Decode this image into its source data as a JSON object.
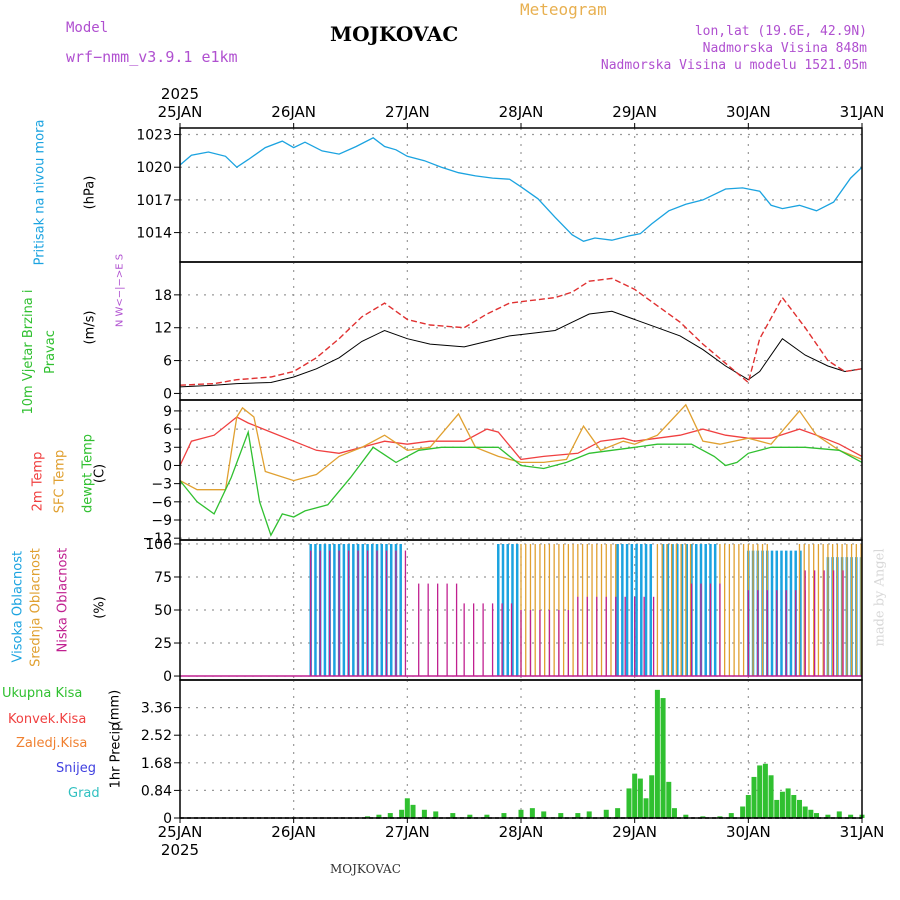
{
  "header": {
    "model_label": "Model",
    "model_name": "wrf−nmm_v3.9.1 e1km",
    "station": "MOJKOVAC",
    "meteogram": "Meteogram",
    "lonlat": "lon,lat (19.6E, 42.9N)",
    "altitude": "Nadmorska Visina 848m",
    "model_altitude": "Nadmorska Visina u modelu 1521.05m"
  },
  "footer": {
    "station": "MOJKOVAC",
    "credit": "made by Angel"
  },
  "colors": {
    "pressure": "#1ba3e0",
    "t2m": "#f04040",
    "sfc": "#e0a030",
    "dew": "#30c030",
    "high_cloud": "#1ba3e0",
    "mid_cloud": "#e0a030",
    "low_cloud": "#c02090",
    "precip": "#30c030",
    "header_purple": "#b050d0",
    "header_orange": "#e8b050"
  },
  "chart_data": {
    "type": "meteogram",
    "time_axis": {
      "year_label": "2025",
      "labels": [
        "25JAN",
        "26JAN",
        "27JAN",
        "28JAN",
        "29JAN",
        "30JAN",
        "31JAN"
      ],
      "start": "2025-01-25T00",
      "end": "2025-01-31T00"
    },
    "panels": [
      {
        "type": "line",
        "name": "pressure",
        "ylabel": "Pritisak na nivou mora",
        "unit": "(hPa)",
        "yticks": [
          1014,
          1017,
          1020,
          1023
        ],
        "ylim": [
          1011.3,
          1023.6
        ],
        "series": [
          {
            "x_day": [
              0,
              0.1,
              0.25,
              0.4,
              0.5,
              0.6,
              0.75,
              0.9,
              1.0,
              1.1,
              1.25,
              1.4,
              1.55,
              1.7,
              1.8,
              1.9,
              2.0,
              2.15,
              2.3,
              2.45,
              2.6,
              2.75,
              2.9,
              3.0,
              3.15,
              3.3,
              3.45,
              3.55,
              3.65,
              3.8,
              3.95,
              4.05,
              4.15,
              4.3,
              4.45,
              4.6,
              4.8,
              4.95,
              5.1,
              5.2,
              5.3,
              5.45,
              5.6,
              5.75,
              5.9,
              6.0
            ],
            "values": [
              1020.2,
              1021.1,
              1021.4,
              1021.0,
              1020.0,
              1020.7,
              1021.8,
              1022.4,
              1021.8,
              1022.3,
              1021.5,
              1021.2,
              1021.9,
              1022.7,
              1021.9,
              1021.6,
              1021.0,
              1020.6,
              1020.0,
              1019.5,
              1019.2,
              1019.0,
              1018.9,
              1018.2,
              1017.1,
              1015.4,
              1013.8,
              1013.2,
              1013.5,
              1013.3,
              1013.7,
              1013.9,
              1014.8,
              1016.0,
              1016.6,
              1017.0,
              1018.0,
              1018.1,
              1017.8,
              1016.5,
              1016.2,
              1016.5,
              1016.0,
              1016.8,
              1019.0,
              1020.0
            ]
          }
        ]
      },
      {
        "type": "line",
        "name": "wind",
        "ylabel": "10m Vjetar Brzina i Pravac",
        "unit": "(m/s)",
        "compass": "N W<−|−>E S",
        "yticks": [
          0,
          6,
          12,
          18
        ],
        "ylim": [
          -1.2,
          24
        ],
        "series": [
          {
            "name": "wind_speed",
            "x_day": [
              0,
              0.3,
              0.5,
              0.8,
              1.0,
              1.2,
              1.4,
              1.6,
              1.8,
              2.0,
              2.2,
              2.5,
              2.7,
              2.9,
              3.1,
              3.3,
              3.45,
              3.6,
              3.8,
              4.0,
              4.2,
              4.4,
              4.6,
              4.8,
              5.0,
              5.1,
              5.3,
              5.5,
              5.7,
              5.85,
              6.0
            ],
            "values": [
              1.2,
              1.5,
              1.8,
              2.0,
              3.0,
              4.5,
              6.5,
              9.5,
              11.5,
              10.0,
              9.0,
              8.5,
              9.5,
              10.5,
              11.0,
              11.5,
              13.0,
              14.5,
              15.0,
              13.5,
              12.0,
              10.5,
              8.0,
              5.0,
              2.5,
              4.0,
              10.0,
              7.0,
              5.0,
              4.0,
              4.5
            ]
          },
          {
            "name": "wind_gust",
            "x_day": [
              0,
              0.3,
              0.5,
              0.8,
              1.0,
              1.2,
              1.4,
              1.6,
              1.8,
              2.0,
              2.2,
              2.5,
              2.7,
              2.9,
              3.1,
              3.3,
              3.45,
              3.6,
              3.8,
              4.0,
              4.2,
              4.4,
              4.6,
              4.8,
              5.0,
              5.1,
              5.3,
              5.5,
              5.7,
              5.85,
              6.0
            ],
            "values": [
              1.5,
              1.8,
              2.5,
              3.0,
              4.0,
              6.5,
              10.0,
              14.0,
              16.5,
              13.5,
              12.5,
              12.0,
              14.5,
              16.5,
              17.0,
              17.5,
              18.5,
              20.5,
              21.0,
              19.0,
              16.0,
              13.0,
              9.0,
              5.5,
              2.0,
              10.0,
              17.5,
              12.0,
              6.0,
              4.0,
              4.5
            ]
          }
        ]
      },
      {
        "type": "line",
        "name": "temperature",
        "ylabel": "2m Temp / SFC Temp / dewpt Temp",
        "series_labels": [
          "2m Temp",
          "SFC Temp",
          "dewpt Temp"
        ],
        "unit": "(C)",
        "yticks": [
          -12,
          -9,
          -6,
          -3,
          0,
          3,
          6,
          9
        ],
        "ylim": [
          -12.3,
          10.8
        ],
        "series": [
          {
            "name": "2m Temp",
            "x_day": [
              0,
              0.1,
              0.3,
              0.5,
              0.6,
              0.8,
              1.0,
              1.2,
              1.4,
              1.6,
              1.8,
              2.0,
              2.2,
              2.5,
              2.7,
              2.8,
              3.0,
              3.2,
              3.5,
              3.7,
              3.9,
              4.0,
              4.2,
              4.4,
              4.6,
              4.8,
              5.0,
              5.2,
              5.45,
              5.6,
              5.8,
              6.0
            ],
            "values": [
              0,
              4.0,
              5.0,
              8.0,
              7.0,
              5.5,
              4.0,
              2.5,
              2.0,
              3.0,
              4.0,
              3.5,
              4.0,
              4.0,
              6.0,
              5.5,
              1.0,
              1.5,
              2.0,
              4.0,
              4.5,
              4.0,
              4.5,
              5.0,
              6.0,
              5.0,
              4.5,
              4.5,
              6.0,
              5.0,
              3.5,
              1.5
            ]
          },
          {
            "name": "SFC Temp",
            "x_day": [
              0,
              0.15,
              0.4,
              0.5,
              0.55,
              0.65,
              0.75,
              1.0,
              1.2,
              1.4,
              1.6,
              1.8,
              2.0,
              2.2,
              2.45,
              2.6,
              2.8,
              3.0,
              3.2,
              3.4,
              3.55,
              3.7,
              3.9,
              4.0,
              4.2,
              4.45,
              4.6,
              4.75,
              5.0,
              5.2,
              5.45,
              5.6,
              5.8,
              6.0
            ],
            "values": [
              -2.5,
              -4.0,
              -4.0,
              8.0,
              9.5,
              8.0,
              -1.0,
              -2.5,
              -1.5,
              1.5,
              3.0,
              5.0,
              2.5,
              3.0,
              8.5,
              3.0,
              1.5,
              0.5,
              0.5,
              1.0,
              6.5,
              2.5,
              4.0,
              3.5,
              5.0,
              10.0,
              4.0,
              3.5,
              4.5,
              3.5,
              9.0,
              5.0,
              2.5,
              1.0
            ]
          },
          {
            "name": "dewpt Temp",
            "x_day": [
              0,
              0.15,
              0.3,
              0.45,
              0.6,
              0.7,
              0.8,
              0.9,
              1.0,
              1.1,
              1.3,
              1.5,
              1.7,
              1.9,
              2.1,
              2.3,
              2.6,
              2.8,
              3.0,
              3.2,
              3.4,
              3.6,
              3.8,
              4.0,
              4.2,
              4.5,
              4.7,
              4.8,
              4.9,
              5.0,
              5.2,
              5.5,
              5.8,
              6.0
            ],
            "values": [
              -2.5,
              -6.0,
              -8.0,
              -2.0,
              5.5,
              -6.0,
              -11.5,
              -8.0,
              -8.5,
              -7.5,
              -6.5,
              -2.0,
              3.0,
              0.5,
              2.5,
              3.0,
              3.0,
              3.0,
              0.0,
              -0.5,
              0.5,
              2.0,
              2.5,
              3.0,
              3.5,
              3.5,
              1.5,
              0.0,
              0.5,
              2.0,
              3.0,
              3.0,
              2.5,
              0.5
            ]
          }
        ]
      },
      {
        "type": "bar",
        "name": "cloud",
        "ylabel": "Visoka Oblacnost / Srednja Oblacnost / Niska Oblacnost",
        "series_labels": [
          "Visoka Oblacnost",
          "Srednja Oblacnost",
          "Niska Oblacnost"
        ],
        "unit": "(%)",
        "yticks": [
          0,
          25,
          50,
          75,
          100
        ],
        "ylim": [
          -3,
          103
        ],
        "series": [
          {
            "name": "Visoka Oblacnost",
            "ranges": [
              [
                1.15,
                1.95,
                100
              ],
              [
                2.8,
                3.0,
                100
              ],
              [
                3.85,
                4.15,
                100
              ],
              [
                4.25,
                4.75,
                100
              ],
              [
                5.0,
                5.5,
                95
              ],
              [
                5.7,
                6.0,
                90
              ]
            ]
          },
          {
            "name": "Srednja Oblacnost",
            "ranges": [
              [
                3.0,
                3.85,
                100
              ],
              [
                4.2,
                4.5,
                100
              ],
              [
                4.75,
                5.2,
                100
              ],
              [
                5.45,
                6.0,
                100
              ]
            ]
          },
          {
            "name": "Niska Oblacnost",
            "ranges": [
              [
                1.15,
                2.05,
                95
              ],
              [
                2.1,
                2.5,
                70
              ],
              [
                2.5,
                3.0,
                55
              ],
              [
                3.0,
                3.5,
                50
              ],
              [
                3.5,
                4.2,
                60
              ],
              [
                4.5,
                4.8,
                70
              ],
              [
                5.0,
                5.5,
                65
              ],
              [
                5.5,
                5.9,
                80
              ]
            ]
          }
        ]
      },
      {
        "type": "bar",
        "name": "precip",
        "ylabel": "1hr Precip",
        "unit": "(mm)",
        "legend": [
          "Ukupna Kisa",
          "Konvek.Kisa",
          "Zaledj.Kisa",
          "Snijeg",
          "Grad"
        ],
        "legend_colors": [
          "#30c030",
          "#f04040",
          "#f08030",
          "#4040e0",
          "#30c0c0"
        ],
        "yticks": [
          0,
          0.84,
          1.68,
          2.52,
          3.36
        ],
        "ylim": [
          0,
          4.2
        ],
        "series": [
          {
            "name": "Ukupna Kisa",
            "x_day": [
              1.65,
              1.75,
              1.85,
              1.95,
              2.0,
              2.05,
              2.15,
              2.25,
              2.4,
              2.55,
              2.7,
              2.85,
              3.0,
              3.1,
              3.2,
              3.35,
              3.5,
              3.6,
              3.75,
              3.85,
              3.95,
              4.0,
              4.05,
              4.1,
              4.15,
              4.2,
              4.25,
              4.3,
              4.35,
              4.45,
              4.6,
              4.75,
              4.85,
              4.95,
              5.0,
              5.05,
              5.1,
              5.15,
              5.2,
              5.25,
              5.3,
              5.35,
              5.4,
              5.45,
              5.5,
              5.55,
              5.6,
              5.7,
              5.8,
              5.9,
              6.0
            ],
            "values": [
              0.05,
              0.1,
              0.15,
              0.25,
              0.6,
              0.4,
              0.25,
              0.2,
              0.15,
              0.1,
              0.1,
              0.15,
              0.25,
              0.3,
              0.2,
              0.15,
              0.15,
              0.2,
              0.25,
              0.3,
              0.9,
              1.35,
              1.2,
              0.6,
              1.3,
              3.9,
              3.65,
              1.1,
              0.3,
              0.1,
              0.05,
              0.05,
              0.15,
              0.35,
              0.7,
              1.25,
              1.6,
              1.65,
              1.3,
              0.55,
              0.8,
              0.9,
              0.7,
              0.55,
              0.35,
              0.25,
              0.15,
              0.1,
              0.2,
              0.1,
              0.1
            ]
          }
        ]
      }
    ]
  }
}
